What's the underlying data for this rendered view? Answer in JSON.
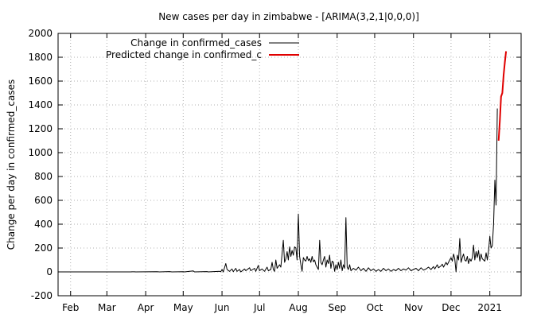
{
  "chart_data": {
    "type": "line",
    "title": "New cases per day in zimbabwe -  [ARIMA(3,2,1|0,0,0)]",
    "xlabel": "",
    "ylabel": "Change per day in confirmed_cases",
    "x_tick_labels": [
      "Feb",
      "Mar",
      "Apr",
      "May",
      "Jun",
      "Jul",
      "Aug",
      "Sep",
      "Oct",
      "Nov",
      "Dec",
      "2021"
    ],
    "x_tick_dates": [
      "2020-02-01",
      "2020-03-01",
      "2020-04-01",
      "2020-05-01",
      "2020-06-01",
      "2020-07-01",
      "2020-08-01",
      "2020-09-01",
      "2020-10-01",
      "2020-11-01",
      "2020-12-01",
      "2021-01-01"
    ],
    "xlim": [
      "2020-01-22",
      "2021-01-26"
    ],
    "ylim": [
      -200,
      2000
    ],
    "y_ticks": [
      -200,
      0,
      200,
      400,
      600,
      800,
      1000,
      1200,
      1400,
      1600,
      1800,
      2000
    ],
    "grid": true,
    "legend_position": "top-left",
    "series": [
      {
        "name": "Change in confirmed_cases",
        "color": "#000000",
        "points": [
          [
            "2020-01-22",
            0
          ],
          [
            "2020-03-20",
            0
          ],
          [
            "2020-03-21",
            1
          ],
          [
            "2020-03-23",
            1
          ],
          [
            "2020-03-24",
            0
          ],
          [
            "2020-04-10",
            2
          ],
          [
            "2020-04-12",
            0
          ],
          [
            "2020-04-20",
            3
          ],
          [
            "2020-04-22",
            0
          ],
          [
            "2020-05-01",
            2
          ],
          [
            "2020-05-02",
            0
          ],
          [
            "2020-05-09",
            8
          ],
          [
            "2020-05-10",
            0
          ],
          [
            "2020-05-20",
            3
          ],
          [
            "2020-05-21",
            0
          ],
          [
            "2020-05-30",
            5
          ],
          [
            "2020-05-31",
            2
          ],
          [
            "2020-06-01",
            20
          ],
          [
            "2020-06-02",
            0
          ],
          [
            "2020-06-04",
            70
          ],
          [
            "2020-06-05",
            20
          ],
          [
            "2020-06-07",
            5
          ],
          [
            "2020-06-09",
            25
          ],
          [
            "2020-06-10",
            2
          ],
          [
            "2020-06-12",
            30
          ],
          [
            "2020-06-13",
            5
          ],
          [
            "2020-06-15",
            20
          ],
          [
            "2020-06-16",
            0
          ],
          [
            "2020-06-19",
            25
          ],
          [
            "2020-06-20",
            10
          ],
          [
            "2020-06-23",
            35
          ],
          [
            "2020-06-24",
            10
          ],
          [
            "2020-06-27",
            30
          ],
          [
            "2020-06-28",
            5
          ],
          [
            "2020-06-30",
            55
          ],
          [
            "2020-07-01",
            10
          ],
          [
            "2020-07-03",
            25
          ],
          [
            "2020-07-05",
            5
          ],
          [
            "2020-07-07",
            40
          ],
          [
            "2020-07-08",
            10
          ],
          [
            "2020-07-10",
            20
          ],
          [
            "2020-07-11",
            80
          ],
          [
            "2020-07-12",
            20
          ],
          [
            "2020-07-13",
            5
          ],
          [
            "2020-07-14",
            100
          ],
          [
            "2020-07-15",
            30
          ],
          [
            "2020-07-17",
            60
          ],
          [
            "2020-07-18",
            40
          ],
          [
            "2020-07-20",
            265
          ],
          [
            "2020-07-21",
            80
          ],
          [
            "2020-07-22",
            110
          ],
          [
            "2020-07-23",
            170
          ],
          [
            "2020-07-24",
            100
          ],
          [
            "2020-07-25",
            210
          ],
          [
            "2020-07-26",
            130
          ],
          [
            "2020-07-27",
            180
          ],
          [
            "2020-07-28",
            140
          ],
          [
            "2020-07-29",
            210
          ],
          [
            "2020-07-30",
            200
          ],
          [
            "2020-07-31",
            100
          ],
          [
            "2020-08-01",
            485
          ],
          [
            "2020-08-02",
            130
          ],
          [
            "2020-08-03",
            60
          ],
          [
            "2020-08-04",
            5
          ],
          [
            "2020-08-05",
            120
          ],
          [
            "2020-08-06",
            100
          ],
          [
            "2020-08-07",
            90
          ],
          [
            "2020-08-08",
            130
          ],
          [
            "2020-08-09",
            95
          ],
          [
            "2020-08-10",
            110
          ],
          [
            "2020-08-11",
            80
          ],
          [
            "2020-08-12",
            130
          ],
          [
            "2020-08-13",
            85
          ],
          [
            "2020-08-14",
            100
          ],
          [
            "2020-08-15",
            60
          ],
          [
            "2020-08-17",
            20
          ],
          [
            "2020-08-18",
            265
          ],
          [
            "2020-08-19",
            80
          ],
          [
            "2020-08-20",
            60
          ],
          [
            "2020-08-21",
            100
          ],
          [
            "2020-08-22",
            130
          ],
          [
            "2020-08-23",
            40
          ],
          [
            "2020-08-24",
            100
          ],
          [
            "2020-08-25",
            70
          ],
          [
            "2020-08-26",
            140
          ],
          [
            "2020-08-27",
            30
          ],
          [
            "2020-08-28",
            90
          ],
          [
            "2020-08-29",
            80
          ],
          [
            "2020-08-30",
            5
          ],
          [
            "2020-08-31",
            60
          ],
          [
            "2020-09-01",
            20
          ],
          [
            "2020-09-02",
            80
          ],
          [
            "2020-09-03",
            30
          ],
          [
            "2020-09-04",
            100
          ],
          [
            "2020-09-05",
            10
          ],
          [
            "2020-09-06",
            60
          ],
          [
            "2020-09-07",
            30
          ],
          [
            "2020-09-08",
            455
          ],
          [
            "2020-09-09",
            40
          ],
          [
            "2020-09-10",
            20
          ],
          [
            "2020-09-11",
            60
          ],
          [
            "2020-09-12",
            10
          ],
          [
            "2020-09-14",
            30
          ],
          [
            "2020-09-16",
            15
          ],
          [
            "2020-09-18",
            40
          ],
          [
            "2020-09-20",
            10
          ],
          [
            "2020-09-22",
            30
          ],
          [
            "2020-09-24",
            5
          ],
          [
            "2020-09-26",
            35
          ],
          [
            "2020-09-28",
            10
          ],
          [
            "2020-09-30",
            25
          ],
          [
            "2020-10-02",
            5
          ],
          [
            "2020-10-04",
            20
          ],
          [
            "2020-10-06",
            5
          ],
          [
            "2020-10-08",
            30
          ],
          [
            "2020-10-10",
            10
          ],
          [
            "2020-10-12",
            25
          ],
          [
            "2020-10-14",
            5
          ],
          [
            "2020-10-16",
            20
          ],
          [
            "2020-10-18",
            10
          ],
          [
            "2020-10-20",
            30
          ],
          [
            "2020-10-22",
            10
          ],
          [
            "2020-10-24",
            25
          ],
          [
            "2020-10-26",
            15
          ],
          [
            "2020-10-28",
            35
          ],
          [
            "2020-10-30",
            10
          ],
          [
            "2020-11-01",
            20
          ],
          [
            "2020-11-03",
            30
          ],
          [
            "2020-11-05",
            10
          ],
          [
            "2020-11-07",
            35
          ],
          [
            "2020-11-09",
            15
          ],
          [
            "2020-11-11",
            25
          ],
          [
            "2020-11-13",
            40
          ],
          [
            "2020-11-15",
            20
          ],
          [
            "2020-11-17",
            45
          ],
          [
            "2020-11-18",
            25
          ],
          [
            "2020-11-20",
            60
          ],
          [
            "2020-11-21",
            35
          ],
          [
            "2020-11-23",
            50
          ],
          [
            "2020-11-24",
            65
          ],
          [
            "2020-11-25",
            40
          ],
          [
            "2020-11-27",
            80
          ],
          [
            "2020-11-28",
            60
          ],
          [
            "2020-11-30",
            100
          ],
          [
            "2020-12-01",
            120
          ],
          [
            "2020-12-02",
            90
          ],
          [
            "2020-12-03",
            150
          ],
          [
            "2020-12-04",
            110
          ],
          [
            "2020-12-05",
            0
          ],
          [
            "2020-12-06",
            140
          ],
          [
            "2020-12-07",
            100
          ],
          [
            "2020-12-08",
            280
          ],
          [
            "2020-12-09",
            80
          ],
          [
            "2020-12-10",
            120
          ],
          [
            "2020-12-11",
            150
          ],
          [
            "2020-12-12",
            100
          ],
          [
            "2020-12-13",
            90
          ],
          [
            "2020-12-14",
            130
          ],
          [
            "2020-12-15",
            70
          ],
          [
            "2020-12-16",
            110
          ],
          [
            "2020-12-17",
            90
          ],
          [
            "2020-12-18",
            120
          ],
          [
            "2020-12-19",
            225
          ],
          [
            "2020-12-20",
            100
          ],
          [
            "2020-12-21",
            170
          ],
          [
            "2020-12-22",
            120
          ],
          [
            "2020-12-23",
            180
          ],
          [
            "2020-12-24",
            90
          ],
          [
            "2020-12-25",
            150
          ],
          [
            "2020-12-26",
            110
          ],
          [
            "2020-12-27",
            100
          ],
          [
            "2020-12-28",
            90
          ],
          [
            "2020-12-29",
            160
          ],
          [
            "2020-12-30",
            100
          ],
          [
            "2020-12-31",
            180
          ],
          [
            "2021-01-01",
            300
          ],
          [
            "2021-01-02",
            200
          ],
          [
            "2021-01-03",
            220
          ],
          [
            "2021-01-04",
            400
          ],
          [
            "2021-01-05",
            770
          ],
          [
            "2021-01-06",
            560
          ],
          [
            "2021-01-07",
            1370
          ]
        ]
      },
      {
        "name": "Predicted change in confirmed_c",
        "color": "#e00000",
        "points": [
          [
            "2021-01-08",
            1100
          ],
          [
            "2021-01-09",
            1270
          ],
          [
            "2021-01-10",
            1470
          ],
          [
            "2021-01-11",
            1500
          ],
          [
            "2021-01-12",
            1650
          ],
          [
            "2021-01-13",
            1760
          ],
          [
            "2021-01-14",
            1850
          ]
        ]
      }
    ]
  }
}
